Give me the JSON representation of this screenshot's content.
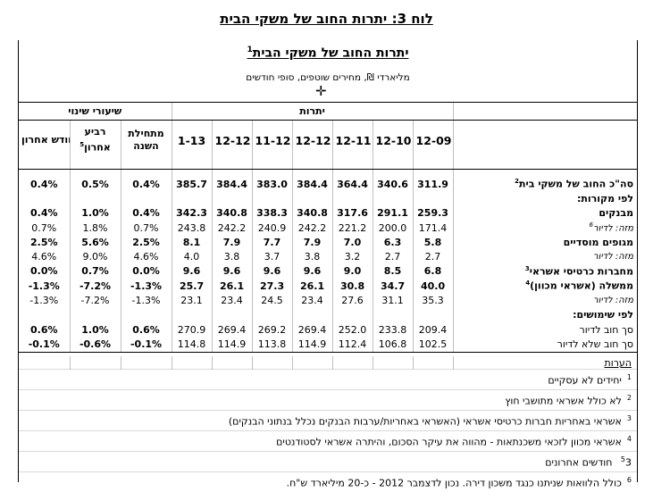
{
  "page_title": "לוח 3: יתרות החוב של משקי הבית",
  "table": {
    "title": "יתרות החוב של משקי הבית",
    "title_sup": "1",
    "subtitle": "מליארדי ₪, מחירים שוטפים, סופי חודשים",
    "group_changes": "שיעורי שינוי",
    "group_balances": "יתרות",
    "col_last_month": "חודש אחרון",
    "col_last_quarter_1": "רביע",
    "col_last_quarter_2": "אחרון",
    "col_last_quarter_sup": "5",
    "col_ytd_1": "מתחילת",
    "col_ytd_2": "השנה",
    "dates": [
      "1-13",
      "12-12",
      "11-12",
      "12-12",
      "12-11",
      "12-10",
      "12-09"
    ],
    "rows": [
      {
        "label": "סה\"כ החוב של משקי בית",
        "sup": "2",
        "bold": true,
        "italic": false,
        "chg": [
          "0.4%",
          "0.5%",
          "0.4%"
        ],
        "vals": [
          "385.7",
          "384.4",
          "383.0",
          "384.4",
          "364.4",
          "340.6",
          "311.9"
        ]
      },
      {
        "label": "לפי מקורות:",
        "sup": "",
        "bold": true,
        "italic": false,
        "chg": [
          "",
          "",
          ""
        ],
        "vals": [
          "",
          "",
          "",
          "",
          "",
          "",
          ""
        ]
      },
      {
        "label": "מבנקים",
        "sup": "",
        "bold": true,
        "italic": false,
        "chg": [
          "0.4%",
          "1.0%",
          "0.4%"
        ],
        "vals": [
          "342.3",
          "340.8",
          "338.3",
          "340.8",
          "317.6",
          "291.1",
          "259.3"
        ]
      },
      {
        "label": "מזה: לדיור",
        "sup": "6",
        "bold": false,
        "italic": true,
        "chg": [
          "0.7%",
          "1.8%",
          "0.7%"
        ],
        "vals": [
          "243.8",
          "242.2",
          "240.9",
          "242.2",
          "221.2",
          "200.0",
          "171.4"
        ]
      },
      {
        "label": "מגופים מוסדיים",
        "sup": "",
        "bold": true,
        "italic": false,
        "chg": [
          "2.5%",
          "5.6%",
          "2.5%"
        ],
        "vals": [
          "8.1",
          "7.9",
          "7.7",
          "7.9",
          "7.0",
          "6.3",
          "5.8"
        ]
      },
      {
        "label": "מזה: לדיור",
        "sup": "",
        "bold": false,
        "italic": true,
        "chg": [
          "4.6%",
          "9.0%",
          "4.6%"
        ],
        "vals": [
          "4.0",
          "3.8",
          "3.7",
          "3.8",
          "3.2",
          "2.7",
          "2.7"
        ]
      },
      {
        "label": "מחברות כרטיסי אשראי",
        "sup": "3",
        "bold": true,
        "italic": false,
        "chg": [
          "0.0%",
          "0.7%",
          "0.0%"
        ],
        "vals": [
          "9.6",
          "9.6",
          "9.6",
          "9.6",
          "9.0",
          "8.5",
          "6.8"
        ]
      },
      {
        "label": "ממשלה (אשראי מכוון)",
        "sup": "4",
        "bold": true,
        "italic": false,
        "chg": [
          "-1.3%",
          "-7.2%",
          "-1.3%"
        ],
        "vals": [
          "25.7",
          "26.1",
          "27.3",
          "26.1",
          "30.8",
          "34.7",
          "40.0"
        ]
      },
      {
        "label": "מזה: לדיור",
        "sup": "",
        "bold": false,
        "italic": true,
        "chg": [
          "-1.3%",
          "-7.2%",
          "-1.3%"
        ],
        "vals": [
          "23.1",
          "23.4",
          "24.5",
          "23.4",
          "27.6",
          "31.1",
          "35.3"
        ]
      },
      {
        "label": "לפי שימושים:",
        "sup": "",
        "bold": true,
        "italic": false,
        "chg": [
          "",
          "",
          ""
        ],
        "vals": [
          "",
          "",
          "",
          "",
          "",
          "",
          ""
        ]
      },
      {
        "label": "סך חוב לדיור",
        "sup": "",
        "bold": false,
        "italic": false,
        "chg": [
          "0.6%",
          "1.0%",
          "0.6%"
        ],
        "vals": [
          "270.9",
          "269.4",
          "269.2",
          "269.4",
          "252.0",
          "233.8",
          "209.4"
        ]
      },
      {
        "label": "סך חוב שלא לדיור",
        "sup": "",
        "bold": false,
        "italic": false,
        "chg": [
          "-0.1%",
          "-0.6%",
          "-0.1%"
        ],
        "vals": [
          "114.8",
          "114.9",
          "113.8",
          "114.9",
          "112.4",
          "106.8",
          "102.5"
        ]
      }
    ],
    "bold_chg_rows": [
      0,
      2,
      4,
      6,
      7,
      10,
      11
    ],
    "bold_val_rows": [
      0,
      2,
      4,
      6,
      7
    ]
  },
  "notes": {
    "header": "הערות",
    "items": [
      {
        "num": "1",
        "text": "יחידים לא עסקיים"
      },
      {
        "num": "2",
        "text": "לא כולל אשראי מתושבי חוץ"
      },
      {
        "num": "3",
        "text": "אשראי באחריות חברות כרטיסי אשראי (האשראי באחריות/ערבות הבנקים נכלל בנתוני הבנקים)"
      },
      {
        "num": "4",
        "text": "אשראי מכוון לזכאי משכנתאות - מהווה את עיקר הסכום, והיתרה אשראי לסטודנטים"
      },
      {
        "num": "5",
        "text": "3 חודשים אחרונים"
      },
      {
        "num": "6",
        "text": "כולל הלוואות שניתנו כנגד משכון דירה. נכון לדצמבר 2012 - כ-20 מיליארד ש\"ח."
      }
    ]
  }
}
